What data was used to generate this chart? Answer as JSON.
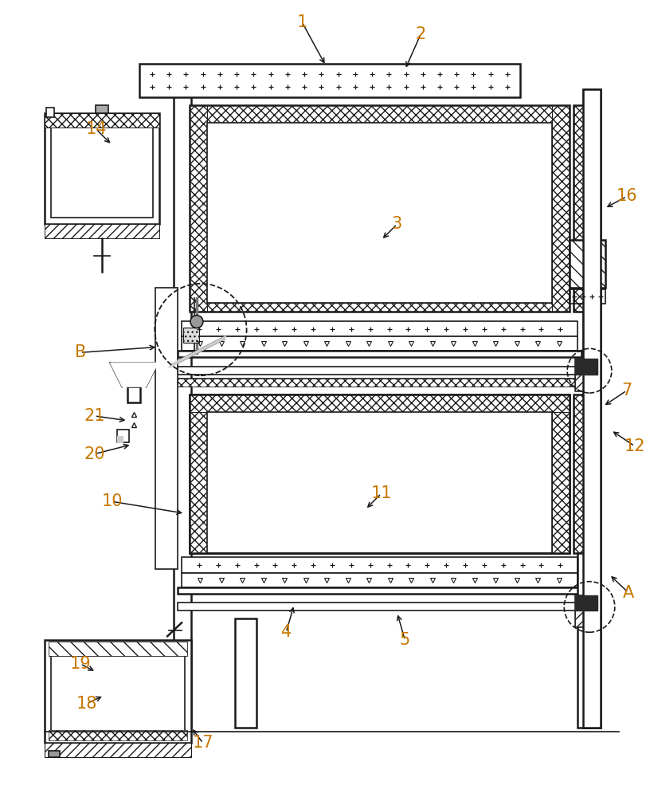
{
  "bg_color": "#ffffff",
  "line_color": "#1a1a1a",
  "label_color": "#c87800",
  "fig_width": 8.12,
  "fig_height": 10.0,
  "dpi": 100
}
